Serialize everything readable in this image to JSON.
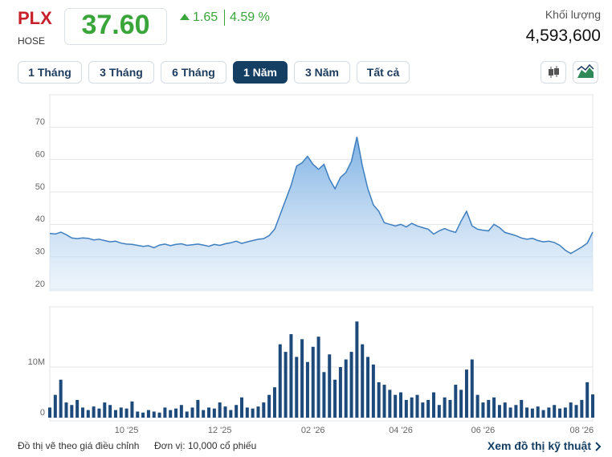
{
  "header": {
    "symbol": "PLX",
    "exchange": "HOSE",
    "price": "37.60",
    "change": "1.65",
    "change_pct": "4.59 %",
    "volume_label": "Khối lượng",
    "volume": "4,593,600"
  },
  "tabs": [
    {
      "label": "1 Tháng",
      "active": false
    },
    {
      "label": "3 Tháng",
      "active": false
    },
    {
      "label": "6 Tháng",
      "active": false
    },
    {
      "label": "1 Năm",
      "active": true
    },
    {
      "label": "3 Năm",
      "active": false
    },
    {
      "label": "Tất cả",
      "active": false
    }
  ],
  "footer": {
    "note": "Đồ thị vẽ theo giá điều chỉnh",
    "unit": "Đơn vị: 10,000 cổ phiếu",
    "link": "Xem đồ thị kỹ thuật"
  },
  "chart_data": [
    {
      "type": "area",
      "color": "#3f7fbf",
      "ylim": [
        19.5,
        80
      ],
      "yticks": [
        20,
        30,
        40,
        50,
        60,
        70
      ],
      "grid": true,
      "values": [
        37.2,
        37.0,
        37.6,
        36.8,
        35.8,
        35.6,
        35.8,
        35.7,
        35.2,
        35.4,
        35.0,
        34.6,
        34.8,
        34.2,
        33.9,
        33.8,
        33.5,
        33.2,
        33.4,
        32.8,
        33.6,
        33.9,
        33.4,
        33.8,
        34.0,
        33.5,
        33.7,
        33.9,
        33.6,
        33.2,
        33.8,
        33.5,
        34.0,
        34.3,
        34.8,
        34.1,
        34.6,
        35.0,
        35.4,
        35.6,
        36.5,
        38.5,
        43.0,
        47.5,
        52.0,
        58.0,
        59.0,
        61.0,
        58.5,
        57.0,
        58.5,
        54.0,
        51.0,
        54.5,
        56.0,
        59.5,
        67.0,
        58.0,
        51.0,
        46.0,
        44.0,
        40.5,
        40.0,
        39.5,
        40.0,
        39.2,
        40.3,
        39.5,
        39.0,
        38.5,
        37.0,
        38.0,
        38.7,
        38.0,
        37.5,
        41.0,
        44.0,
        39.5,
        38.5,
        38.2,
        38.0,
        40.0,
        39.0,
        37.5,
        37.0,
        36.5,
        35.8,
        35.4,
        35.7,
        35.0,
        34.6,
        34.8,
        34.4,
        33.5,
        32.0,
        31.0,
        32.0,
        33.0,
        34.2,
        37.6
      ]
    },
    {
      "type": "bar",
      "color": "#1d4a7a",
      "ylim": [
        0,
        21900000
      ],
      "yticks": [
        0,
        {
          "value": 10000000,
          "label": "10M"
        }
      ],
      "grid": true,
      "categories": [
        null,
        null,
        null,
        null,
        null,
        null,
        null,
        null,
        null,
        null,
        null,
        null,
        null,
        null,
        "10 '25",
        null,
        null,
        null,
        null,
        null,
        null,
        null,
        null,
        null,
        null,
        null,
        null,
        null,
        null,
        null,
        null,
        "12 '25",
        null,
        null,
        null,
        null,
        null,
        null,
        null,
        null,
        null,
        null,
        null,
        null,
        null,
        null,
        null,
        null,
        "02 '26",
        null,
        null,
        null,
        null,
        null,
        null,
        null,
        null,
        null,
        null,
        null,
        null,
        null,
        null,
        null,
        "04 '26",
        null,
        null,
        null,
        null,
        null,
        null,
        null,
        null,
        null,
        null,
        null,
        null,
        null,
        null,
        "06 '26",
        null,
        null,
        null,
        null,
        null,
        null,
        null,
        null,
        null,
        null,
        null,
        null,
        null,
        null,
        null,
        null,
        null,
        "08 '26",
        null,
        null
      ],
      "values": [
        2000000,
        4500000,
        7500000,
        3000000,
        2500000,
        3500000,
        2000000,
        1500000,
        2200000,
        1800000,
        3000000,
        2500000,
        1500000,
        2000000,
        1800000,
        3200000,
        1200000,
        1000000,
        1500000,
        1200000,
        1000000,
        2000000,
        1500000,
        1800000,
        2500000,
        1200000,
        2000000,
        3500000,
        1500000,
        2000000,
        1800000,
        3000000,
        2200000,
        1500000,
        2500000,
        4000000,
        2000000,
        1800000,
        2200000,
        3000000,
        4500000,
        6000000,
        14500000,
        13000000,
        16500000,
        12000000,
        15500000,
        11000000,
        14000000,
        16000000,
        9000000,
        12500000,
        7500000,
        10000000,
        11500000,
        13000000,
        19000000,
        14500000,
        12000000,
        10500000,
        7000000,
        6500000,
        5500000,
        4500000,
        5000000,
        3500000,
        4000000,
        4500000,
        3000000,
        3500000,
        5000000,
        2500000,
        4000000,
        3500000,
        6500000,
        5500000,
        9500000,
        11500000,
        4500000,
        3000000,
        3500000,
        4000000,
        2500000,
        3000000,
        2000000,
        2500000,
        3500000,
        2000000,
        1800000,
        2200000,
        1500000,
        2000000,
        2500000,
        1800000,
        2000000,
        3000000,
        2500000,
        3500000,
        7000000,
        4593600
      ]
    }
  ]
}
